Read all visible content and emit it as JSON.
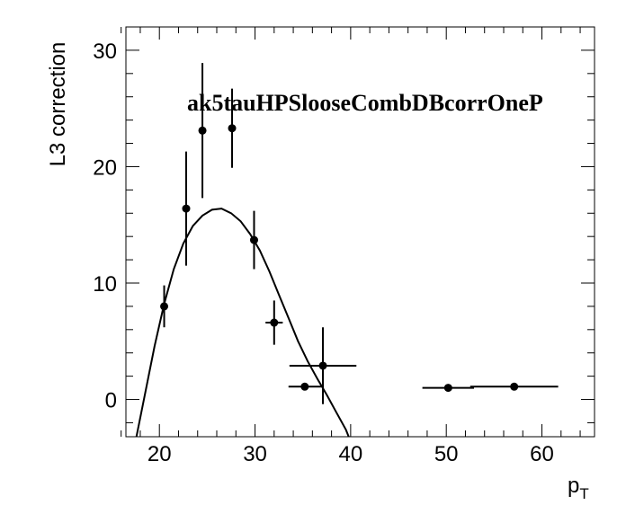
{
  "chart_data": {
    "type": "scatter",
    "title": "ak5tauHPSlooseCombDBcorrOneP",
    "xlabel": "p",
    "xlabel_sub": "T",
    "ylabel": "L3 correction",
    "xlim": [
      16.5,
      65.5
    ],
    "ylim": [
      -3.2,
      32
    ],
    "xticks": [
      20,
      30,
      40,
      50,
      60
    ],
    "yticks": [
      0,
      10,
      20,
      30
    ],
    "tick_labels_x": [
      "20",
      "30",
      "40",
      "50",
      "60"
    ],
    "tick_labels_y": [
      "0",
      "10",
      "20",
      "30"
    ],
    "grid": false,
    "series": [
      {
        "kind": "points_with_errors",
        "points": [
          {
            "x": 20.5,
            "y": 8.0,
            "xerr": 0.0,
            "yerr": 1.8
          },
          {
            "x": 22.8,
            "y": 16.4,
            "xerr": 0.0,
            "yerr": 4.9
          },
          {
            "x": 24.5,
            "y": 23.1,
            "xerr": 0.0,
            "yerr": 5.8
          },
          {
            "x": 27.6,
            "y": 23.3,
            "xerr": 0.0,
            "yerr": 3.4
          },
          {
            "x": 29.9,
            "y": 13.7,
            "xerr": 0.0,
            "yerr": 2.5
          },
          {
            "x": 32.0,
            "y": 6.6,
            "xerr": 0.9,
            "yerr": 1.9
          },
          {
            "x": 35.2,
            "y": 1.1,
            "xerr": 1.7,
            "yerr": 0.0
          },
          {
            "x": 37.1,
            "y": 2.9,
            "xerr": 3.5,
            "yerr": 3.3
          },
          {
            "x": 50.2,
            "y": 1.0,
            "xerr": 2.7,
            "yerr": 0.0
          },
          {
            "x": 57.1,
            "y": 1.1,
            "xerr": 4.6,
            "yerr": 0.0
          }
        ]
      },
      {
        "kind": "fit_curve",
        "points": [
          [
            17.6,
            -3.2
          ],
          [
            18.5,
            0.5
          ],
          [
            19.5,
            4.6
          ],
          [
            20.5,
            8.2
          ],
          [
            21.5,
            11.2
          ],
          [
            22.5,
            13.4
          ],
          [
            23.5,
            14.9
          ],
          [
            24.5,
            15.8
          ],
          [
            25.5,
            16.3
          ],
          [
            26.5,
            16.4
          ],
          [
            27.5,
            16.0
          ],
          [
            28.5,
            15.3
          ],
          [
            29.5,
            14.2
          ],
          [
            30.5,
            12.8
          ],
          [
            31.5,
            11.0
          ],
          [
            32.5,
            9.0
          ],
          [
            33.5,
            7.0
          ],
          [
            34.5,
            5.0
          ],
          [
            35.5,
            3.3
          ],
          [
            36.5,
            1.8
          ],
          [
            37.5,
            0.4
          ],
          [
            38.5,
            -1.1
          ],
          [
            39.5,
            -2.6
          ],
          [
            39.8,
            -3.2
          ]
        ]
      }
    ]
  }
}
